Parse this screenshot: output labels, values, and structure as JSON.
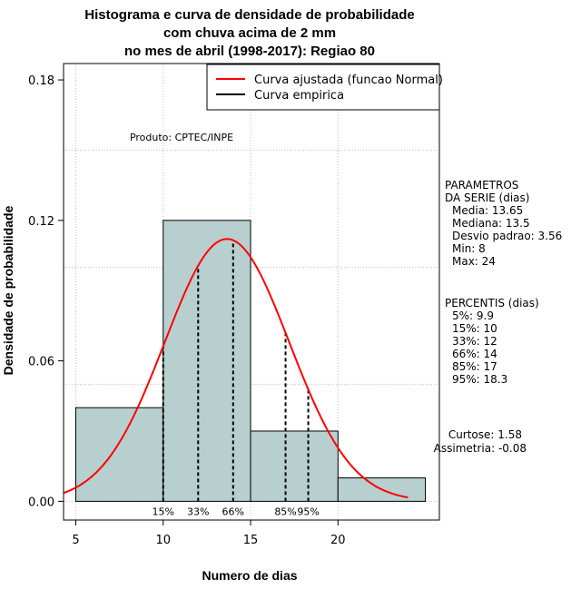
{
  "chart_data": {
    "type": "bar",
    "title_lines": [
      "Histograma e curva de densidade de probabilidade",
      "com chuva acima de 2 mm",
      "no mes de abril (1998-2017): Regiao 80"
    ],
    "xlabel": "Numero de dias",
    "ylabel": "Densidade de probabilidade",
    "xlim": [
      4.3,
      25.8
    ],
    "ylim": [
      -0.008,
      0.187
    ],
    "x_ticks": [
      5,
      10,
      15,
      20
    ],
    "x_tick_labels": [
      "5",
      "10",
      "15",
      "20"
    ],
    "y_ticks": [
      0.0,
      0.06,
      0.12,
      0.18
    ],
    "y_tick_labels": [
      "0.00",
      "0.06",
      "0.12",
      "0.18"
    ],
    "grid": true,
    "bins": [
      {
        "from": 5,
        "to": 10,
        "density": 0.04
      },
      {
        "from": 10,
        "to": 15,
        "density": 0.12
      },
      {
        "from": 15,
        "to": 20,
        "density": 0.03
      },
      {
        "from": 20,
        "to": 25,
        "density": 0.01
      }
    ],
    "fit_curve": {
      "name": "Curva ajustada (funcao Normal)",
      "mean": 13.65,
      "sd": 3.56,
      "x_range": [
        4.3,
        24
      ],
      "color": "#ff0000"
    },
    "empirical_name": "Curva empirica",
    "percentile_lines": [
      {
        "label": "15%",
        "x": 10
      },
      {
        "label": "33%",
        "x": 12
      },
      {
        "label": "66%",
        "x": 14
      },
      {
        "label": "85%",
        "x": 17
      },
      {
        "label": "95%",
        "x": 18.3
      }
    ],
    "product_label": "Produto: CPTEC/INPE",
    "legend_position": "top-right",
    "legend": [
      {
        "label": "Curva ajustada (funcao Normal)",
        "color": "#ff0000"
      },
      {
        "label": "Curva empirica",
        "color": "#000000"
      }
    ],
    "bar_color": "#b8cfcf",
    "parametros": {
      "header": [
        "PARAMETROS",
        "DA SERIE (dias)"
      ],
      "lines": [
        "Media: 13.65",
        "Mediana: 13.5",
        "Desvio padrao: 3.56",
        "Min: 8",
        "Max: 24"
      ]
    },
    "percentis": {
      "header": "PERCENTIS (dias)",
      "lines": [
        "5%: 9.9",
        "15%: 10",
        "33%: 12",
        "66%: 14",
        "85%: 17",
        "95%: 18.3"
      ]
    },
    "stats": [
      "Curtose: 1.58",
      "Assimetria: -0.08"
    ]
  }
}
